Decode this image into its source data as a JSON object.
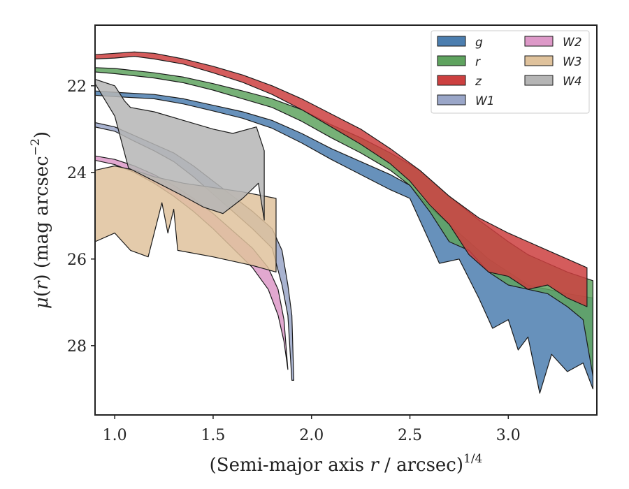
{
  "chart_data": {
    "type": "area",
    "xlabel": "(Semi-major axis r / arcsec)",
    "xlabel_var": "r",
    "xlabel_exp": "1/4",
    "ylabel": "μ(r) (mag arcsec",
    "ylabel_var": "r",
    "ylabel_exp": "−2",
    "xlim": [
      0.9,
      3.45
    ],
    "ylim": [
      29.6,
      20.6
    ],
    "y_inverted": true,
    "xticks": [
      1.0,
      1.5,
      2.0,
      2.5,
      3.0
    ],
    "xtick_labels": [
      "1.0",
      "1.5",
      "2.0",
      "2.5",
      "3.0"
    ],
    "yticks": [
      22,
      24,
      26,
      28
    ],
    "ytick_labels": [
      "22",
      "24",
      "26",
      "28"
    ],
    "grid": false,
    "legend_position": "top-right",
    "legend_columns": 2,
    "series": [
      {
        "name": "g",
        "color": "#4c7eaf",
        "upper": [
          [
            0.9,
            22.12
          ],
          [
            1.0,
            22.15
          ],
          [
            1.2,
            22.2
          ],
          [
            1.35,
            22.3
          ],
          [
            1.5,
            22.45
          ],
          [
            1.65,
            22.6
          ],
          [
            1.8,
            22.8
          ],
          [
            1.95,
            23.1
          ],
          [
            2.1,
            23.45
          ],
          [
            2.25,
            23.75
          ],
          [
            2.4,
            24.05
          ],
          [
            2.5,
            24.3
          ],
          [
            2.6,
            24.8
          ],
          [
            2.7,
            25.2
          ],
          [
            2.8,
            25.6
          ],
          [
            2.9,
            26.0
          ],
          [
            3.0,
            26.3
          ],
          [
            3.1,
            26.6
          ],
          [
            3.2,
            26.7
          ],
          [
            3.3,
            26.8
          ],
          [
            3.43,
            26.9
          ]
        ],
        "lower": [
          [
            0.9,
            22.22
          ],
          [
            1.0,
            22.25
          ],
          [
            1.2,
            22.3
          ],
          [
            1.35,
            22.42
          ],
          [
            1.5,
            22.58
          ],
          [
            1.65,
            22.75
          ],
          [
            1.8,
            22.98
          ],
          [
            1.95,
            23.32
          ],
          [
            2.1,
            23.7
          ],
          [
            2.25,
            24.05
          ],
          [
            2.4,
            24.4
          ],
          [
            2.5,
            24.6
          ],
          [
            2.6,
            25.6
          ],
          [
            2.65,
            26.1
          ],
          [
            2.75,
            26.0
          ],
          [
            2.85,
            26.9
          ],
          [
            2.92,
            27.6
          ],
          [
            3.0,
            27.4
          ],
          [
            3.05,
            28.1
          ],
          [
            3.1,
            27.8
          ],
          [
            3.16,
            29.1
          ],
          [
            3.22,
            28.2
          ],
          [
            3.3,
            28.6
          ],
          [
            3.38,
            28.4
          ],
          [
            3.43,
            29.0
          ]
        ]
      },
      {
        "name": "r",
        "color": "#5fa35f",
        "upper": [
          [
            0.9,
            21.58
          ],
          [
            1.0,
            21.6
          ],
          [
            1.2,
            21.7
          ],
          [
            1.35,
            21.8
          ],
          [
            1.5,
            21.95
          ],
          [
            1.65,
            22.12
          ],
          [
            1.8,
            22.3
          ],
          [
            1.95,
            22.55
          ],
          [
            2.1,
            22.9
          ],
          [
            2.25,
            23.2
          ],
          [
            2.4,
            23.55
          ],
          [
            2.55,
            23.95
          ],
          [
            2.7,
            24.55
          ],
          [
            2.85,
            25.1
          ],
          [
            3.0,
            25.6
          ],
          [
            3.1,
            25.9
          ],
          [
            3.2,
            26.1
          ],
          [
            3.3,
            26.3
          ],
          [
            3.43,
            26.5
          ]
        ],
        "lower": [
          [
            0.9,
            21.68
          ],
          [
            1.0,
            21.72
          ],
          [
            1.2,
            21.82
          ],
          [
            1.35,
            21.93
          ],
          [
            1.5,
            22.1
          ],
          [
            1.65,
            22.3
          ],
          [
            1.8,
            22.5
          ],
          [
            1.95,
            22.82
          ],
          [
            2.1,
            23.2
          ],
          [
            2.25,
            23.55
          ],
          [
            2.4,
            23.95
          ],
          [
            2.5,
            24.3
          ],
          [
            2.6,
            24.9
          ],
          [
            2.7,
            25.6
          ],
          [
            2.8,
            25.8
          ],
          [
            2.9,
            26.3
          ],
          [
            3.0,
            26.6
          ],
          [
            3.1,
            26.7
          ],
          [
            3.2,
            26.8
          ],
          [
            3.3,
            27.1
          ],
          [
            3.38,
            27.4
          ],
          [
            3.43,
            28.7
          ]
        ]
      },
      {
        "name": "z",
        "color": "#cc4040",
        "upper": [
          [
            0.9,
            21.28
          ],
          [
            1.0,
            21.25
          ],
          [
            1.1,
            21.22
          ],
          [
            1.2,
            21.25
          ],
          [
            1.35,
            21.38
          ],
          [
            1.5,
            21.55
          ],
          [
            1.65,
            21.75
          ],
          [
            1.8,
            22.0
          ],
          [
            1.95,
            22.3
          ],
          [
            2.1,
            22.65
          ],
          [
            2.25,
            23.0
          ],
          [
            2.4,
            23.45
          ],
          [
            2.55,
            23.95
          ],
          [
            2.7,
            24.55
          ],
          [
            2.85,
            25.05
          ],
          [
            3.0,
            25.4
          ],
          [
            3.1,
            25.6
          ],
          [
            3.2,
            25.8
          ],
          [
            3.3,
            26.0
          ],
          [
            3.4,
            26.2
          ]
        ],
        "lower": [
          [
            0.9,
            21.38
          ],
          [
            1.0,
            21.36
          ],
          [
            1.1,
            21.32
          ],
          [
            1.2,
            21.38
          ],
          [
            1.35,
            21.5
          ],
          [
            1.5,
            21.7
          ],
          [
            1.65,
            21.92
          ],
          [
            1.8,
            22.2
          ],
          [
            1.95,
            22.55
          ],
          [
            2.1,
            22.95
          ],
          [
            2.25,
            23.35
          ],
          [
            2.4,
            23.8
          ],
          [
            2.5,
            24.2
          ],
          [
            2.6,
            24.75
          ],
          [
            2.7,
            25.2
          ],
          [
            2.8,
            25.9
          ],
          [
            2.9,
            26.3
          ],
          [
            3.0,
            26.4
          ],
          [
            3.1,
            26.7
          ],
          [
            3.2,
            26.6
          ],
          [
            3.3,
            26.9
          ],
          [
            3.4,
            27.1
          ]
        ]
      },
      {
        "name": "W1",
        "color": "#9aa6c8",
        "upper": [
          [
            0.9,
            22.85
          ],
          [
            1.0,
            22.95
          ],
          [
            1.1,
            23.15
          ],
          [
            1.2,
            23.35
          ],
          [
            1.3,
            23.55
          ],
          [
            1.4,
            23.85
          ],
          [
            1.5,
            24.2
          ],
          [
            1.6,
            24.55
          ],
          [
            1.7,
            24.9
          ],
          [
            1.8,
            25.3
          ],
          [
            1.85,
            25.8
          ],
          [
            1.88,
            26.6
          ],
          [
            1.9,
            27.3
          ],
          [
            1.91,
            28.8
          ]
        ],
        "lower": [
          [
            0.9,
            22.95
          ],
          [
            1.0,
            23.05
          ],
          [
            1.1,
            23.28
          ],
          [
            1.2,
            23.5
          ],
          [
            1.3,
            23.75
          ],
          [
            1.4,
            24.1
          ],
          [
            1.5,
            24.5
          ],
          [
            1.6,
            24.9
          ],
          [
            1.7,
            25.3
          ],
          [
            1.8,
            25.75
          ],
          [
            1.85,
            26.6
          ],
          [
            1.88,
            27.3
          ],
          [
            1.9,
            28.8
          ]
        ]
      },
      {
        "name": "W2",
        "color": "#dd99c8",
        "upper": [
          [
            0.9,
            23.62
          ],
          [
            1.0,
            23.7
          ],
          [
            1.1,
            23.85
          ],
          [
            1.2,
            24.05
          ],
          [
            1.3,
            24.3
          ],
          [
            1.4,
            24.6
          ],
          [
            1.5,
            24.95
          ],
          [
            1.6,
            25.35
          ],
          [
            1.7,
            25.75
          ],
          [
            1.78,
            26.2
          ],
          [
            1.83,
            26.7
          ],
          [
            1.86,
            27.4
          ],
          [
            1.88,
            28.55
          ]
        ],
        "lower": [
          [
            0.9,
            23.72
          ],
          [
            1.0,
            23.82
          ],
          [
            1.1,
            24.0
          ],
          [
            1.2,
            24.25
          ],
          [
            1.3,
            24.55
          ],
          [
            1.4,
            24.9
          ],
          [
            1.5,
            25.3
          ],
          [
            1.6,
            25.75
          ],
          [
            1.7,
            26.2
          ],
          [
            1.78,
            26.7
          ],
          [
            1.83,
            27.3
          ],
          [
            1.86,
            27.9
          ],
          [
            1.88,
            28.55
          ]
        ]
      },
      {
        "name": "W3",
        "color": "#dfc29c",
        "upper": [
          [
            0.9,
            23.95
          ],
          [
            1.0,
            23.85
          ],
          [
            1.1,
            23.95
          ],
          [
            1.2,
            24.1
          ],
          [
            1.35,
            24.25
          ],
          [
            1.5,
            24.35
          ],
          [
            1.65,
            24.45
          ],
          [
            1.82,
            24.6
          ]
        ],
        "lower": [
          [
            0.9,
            25.6
          ],
          [
            1.0,
            25.4
          ],
          [
            1.08,
            25.8
          ],
          [
            1.17,
            25.95
          ],
          [
            1.24,
            24.7
          ],
          [
            1.27,
            25.4
          ],
          [
            1.3,
            24.85
          ],
          [
            1.32,
            25.8
          ],
          [
            1.5,
            25.95
          ],
          [
            1.7,
            26.15
          ],
          [
            1.82,
            26.3
          ]
        ]
      },
      {
        "name": "W4",
        "color": "#b5b5b5",
        "upper": [
          [
            0.9,
            21.85
          ],
          [
            1.0,
            22.0
          ],
          [
            1.05,
            22.35
          ],
          [
            1.08,
            22.5
          ],
          [
            1.2,
            22.6
          ],
          [
            1.35,
            22.8
          ],
          [
            1.5,
            23.0
          ],
          [
            1.6,
            23.1
          ],
          [
            1.72,
            22.95
          ],
          [
            1.76,
            23.5
          ]
        ],
        "lower": [
          [
            0.9,
            21.95
          ],
          [
            1.0,
            22.7
          ],
          [
            1.07,
            23.9
          ],
          [
            1.2,
            24.2
          ],
          [
            1.35,
            24.55
          ],
          [
            1.45,
            24.8
          ],
          [
            1.55,
            24.95
          ],
          [
            1.65,
            24.6
          ],
          [
            1.73,
            24.25
          ],
          [
            1.76,
            25.1
          ]
        ]
      }
    ]
  }
}
